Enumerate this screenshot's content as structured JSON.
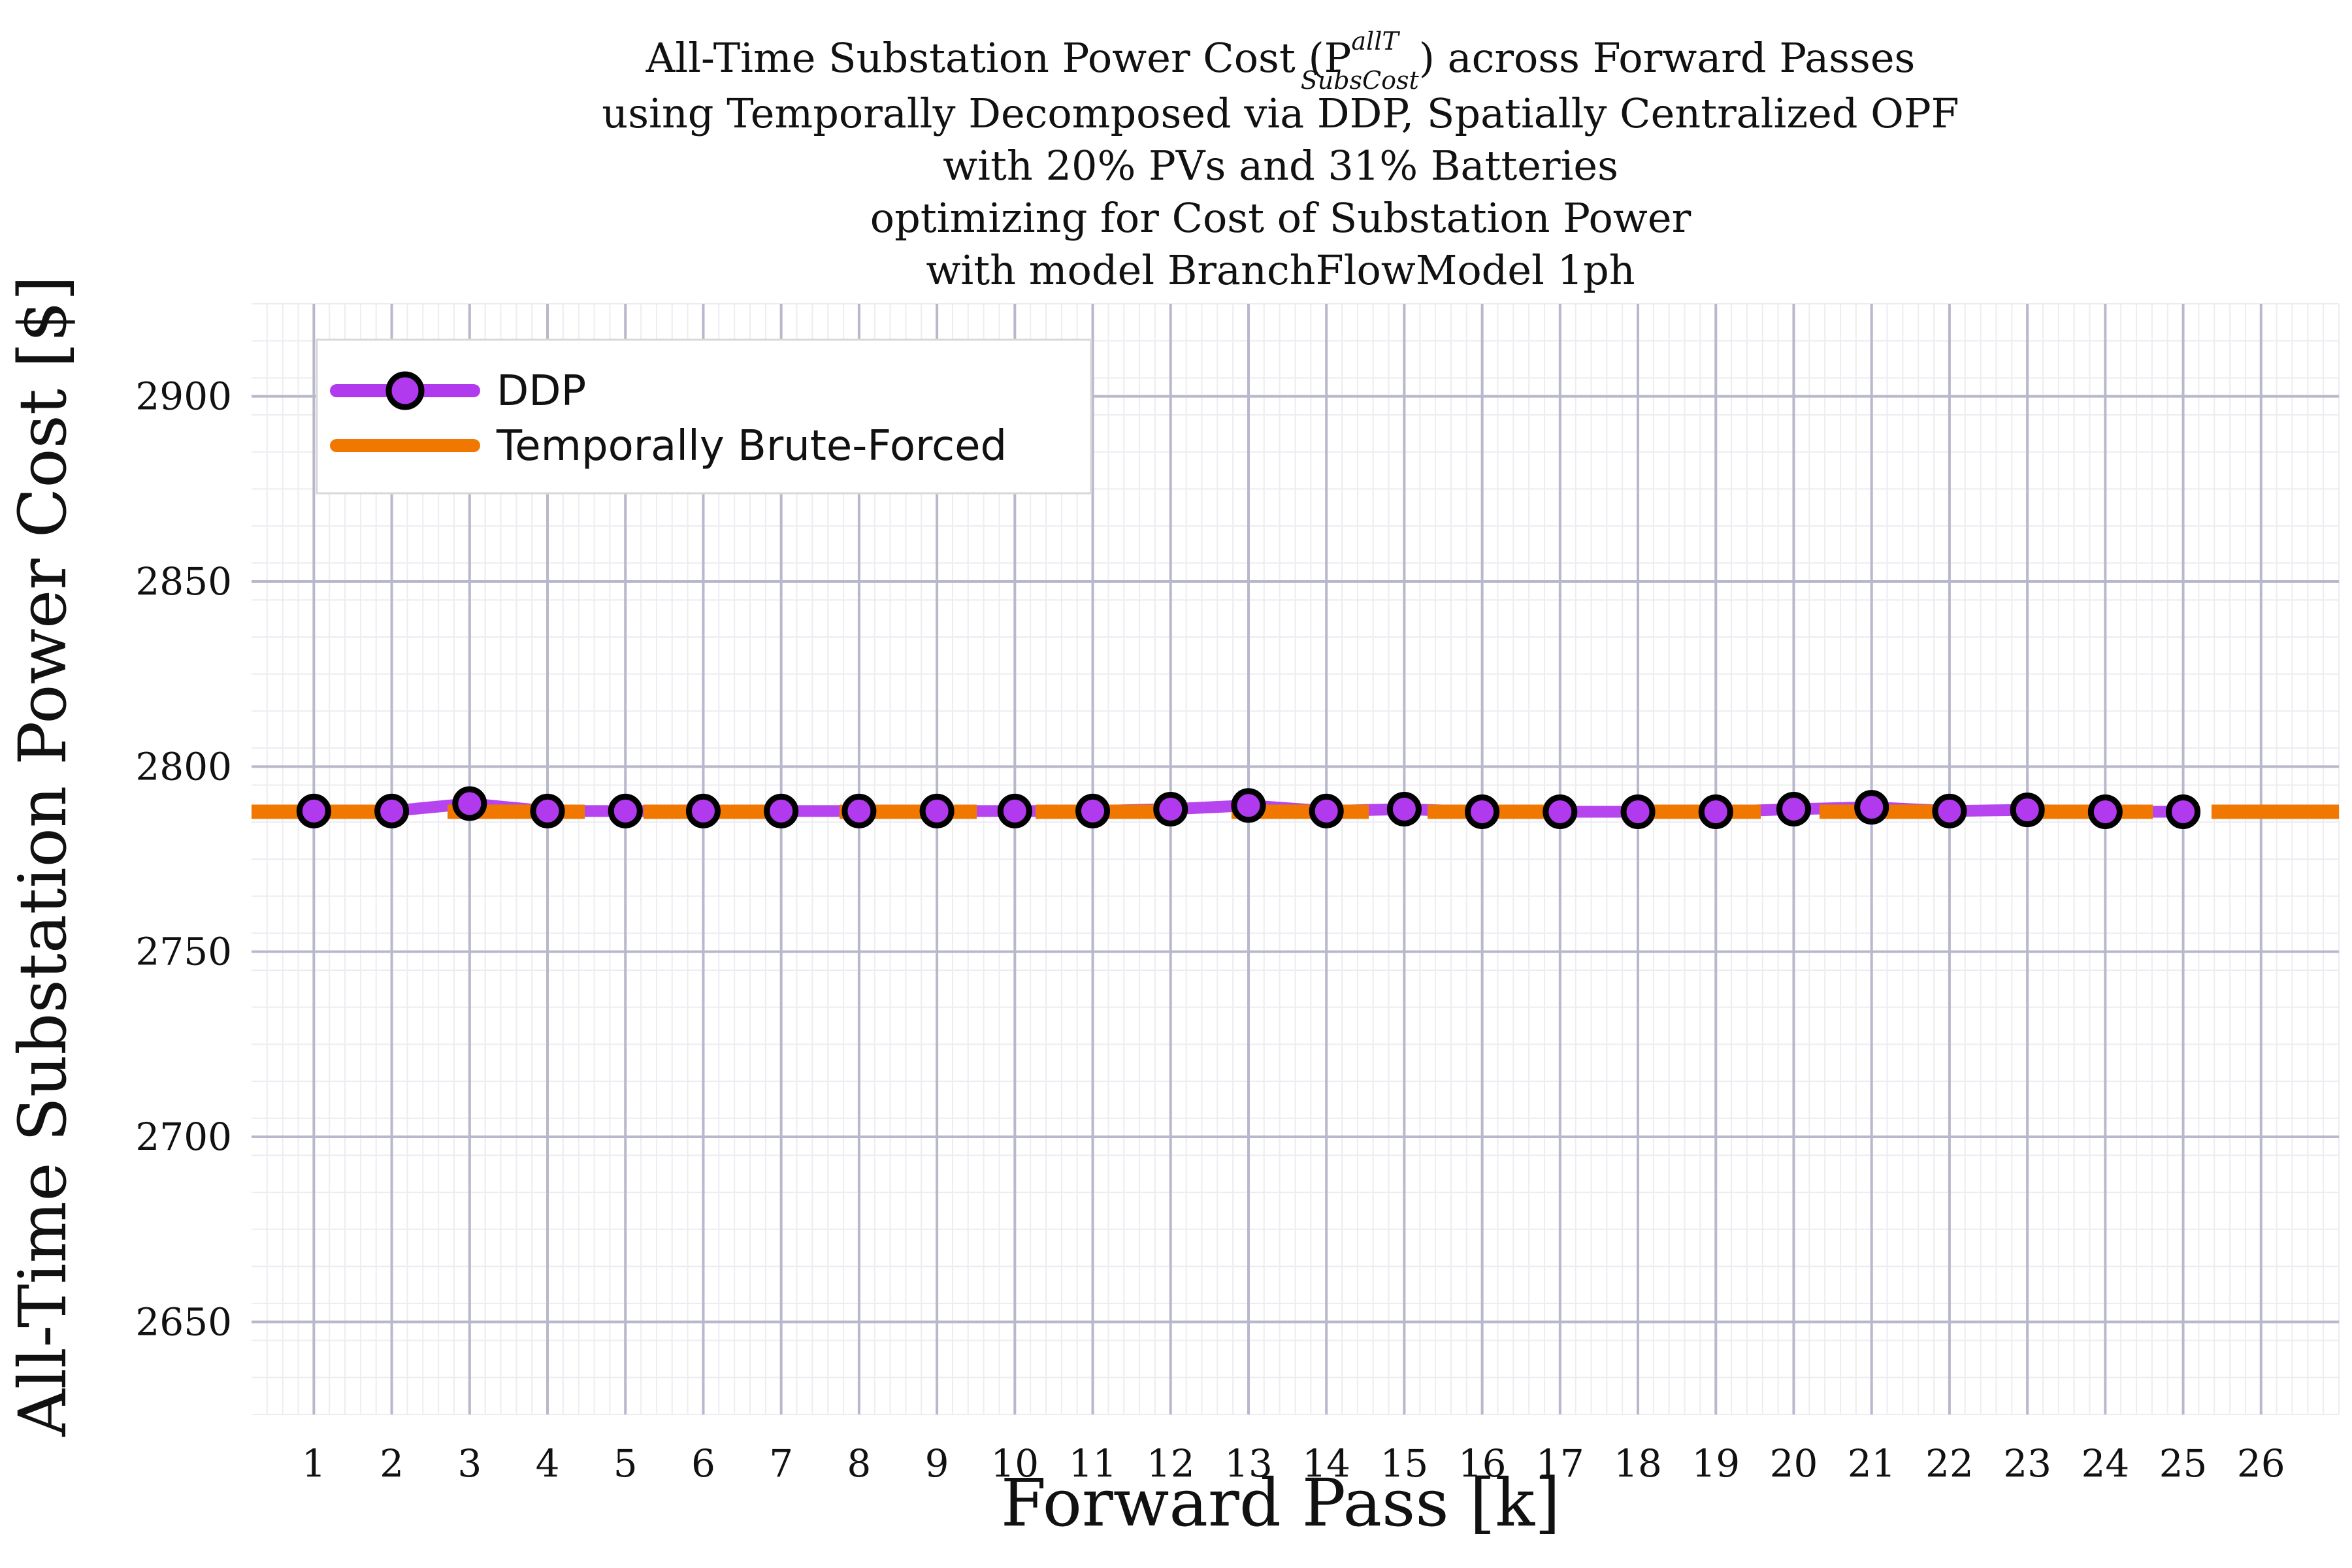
{
  "chart_data": {
    "type": "line",
    "title_lines": [
      "All-Time Substation Power Cost (P",
      "using Temporally Decomposed via DDP, Spatially Centralized OPF",
      "with 20% PVs and 31% Batteries",
      "optimizing for Cost of Substation Power",
      "with model BranchFlowModel 1ph"
    ],
    "title_symbol": {
      "superscript": "allT",
      "subscript": "SubsCost",
      "suffix": ") across Forward Passes"
    },
    "xlabel": "Forward Pass [k]",
    "ylabel": "All-Time Substation Power Cost [$]",
    "xlim": [
      0.2,
      27.0
    ],
    "ylim": [
      2625,
      2925
    ],
    "x_ticks": [
      1,
      2,
      3,
      4,
      5,
      6,
      7,
      8,
      9,
      10,
      11,
      12,
      13,
      14,
      15,
      16,
      17,
      18,
      19,
      20,
      21,
      22,
      23,
      24,
      25,
      26
    ],
    "y_ticks": [
      2650,
      2700,
      2750,
      2800,
      2850,
      2900
    ],
    "grid": true,
    "legend_position": "top-left",
    "series": [
      {
        "name": "DDP",
        "style": "line-with-circle-markers",
        "color": "#b23aee",
        "marker_edge": "#000000",
        "x": [
          1,
          2,
          3,
          4,
          5,
          6,
          7,
          8,
          9,
          10,
          11,
          12,
          13,
          14,
          15,
          16,
          17,
          18,
          19,
          20,
          21,
          22,
          23,
          24,
          25
        ],
        "values": [
          2788,
          2788,
          2790,
          2788,
          2788,
          2788,
          2788,
          2788,
          2788,
          2788,
          2788,
          2788.5,
          2789.5,
          2788,
          2788.5,
          2787.8,
          2787.8,
          2787.8,
          2787.8,
          2788.5,
          2789,
          2788,
          2788.3,
          2787.8,
          2787.8
        ]
      },
      {
        "name": "Temporally Brute-Forced",
        "style": "dashed-horizontal",
        "color": "#f07800",
        "value": 2787.8
      }
    ]
  }
}
